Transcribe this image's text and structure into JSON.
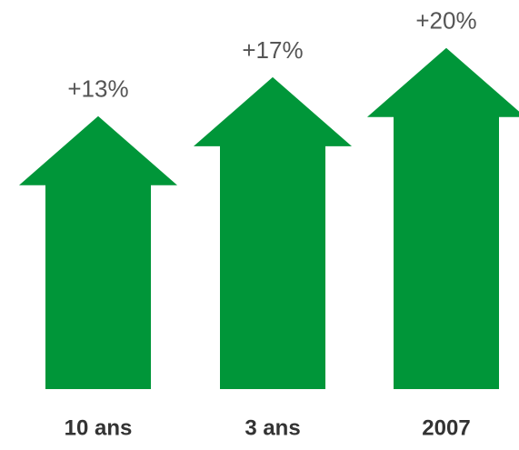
{
  "chart_data": {
    "type": "arrow-bar",
    "categories": [
      "10 ans",
      "3 ans",
      "2007"
    ],
    "values": [
      13,
      17,
      20
    ],
    "value_labels": [
      "+13%",
      "+17%",
      "+20%"
    ],
    "color": "#009639",
    "ylim": [
      -15,
      21
    ]
  }
}
